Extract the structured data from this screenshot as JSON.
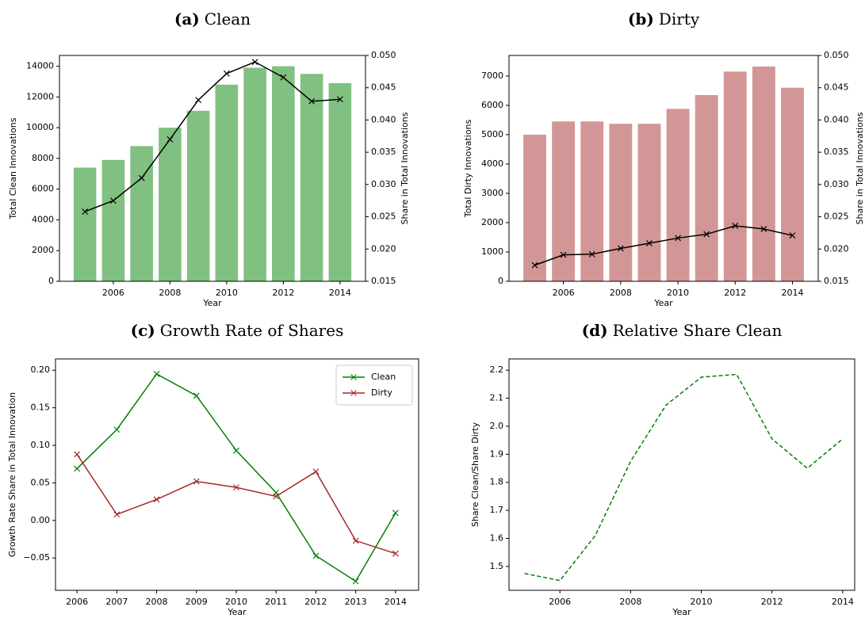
{
  "chart_data": [
    {
      "type": "bar",
      "panel": "(a)",
      "title": "Clean",
      "x": [
        2005,
        2006,
        2007,
        2008,
        2009,
        2010,
        2011,
        2012,
        2013,
        2014
      ],
      "xlim": [
        2004.1,
        2014.9
      ],
      "xticks": [
        2006,
        2008,
        2010,
        2012,
        2014
      ],
      "xlabel": "Year",
      "ylabel": "Total Clean Innovations",
      "ylabel_color": "#008000",
      "ylim": [
        0,
        14700
      ],
      "yticks": [
        0,
        2000,
        4000,
        6000,
        8000,
        10000,
        12000,
        14000
      ],
      "y2label": "Share in Total Innovations",
      "y2lim": [
        0.015,
        0.05
      ],
      "y2ticks": [
        {
          "value": 0.015,
          "label": "0.015"
        },
        {
          "value": 0.02,
          "label": "0.020"
        },
        {
          "value": 0.025,
          "label": "0.025"
        },
        {
          "value": 0.03,
          "label": "0.030"
        },
        {
          "value": 0.035,
          "label": "0.035"
        },
        {
          "value": 0.04,
          "label": "0.040"
        },
        {
          "value": 0.045,
          "label": "0.045"
        },
        {
          "value": 0.05,
          "label": "0.050"
        }
      ],
      "series": [
        {
          "type": "bar",
          "color": "#80c080",
          "values": [
            7400,
            7900,
            8800,
            10000,
            11100,
            12800,
            13900,
            14000,
            13500,
            12900
          ]
        },
        {
          "type": "line",
          "axis": "y2",
          "color": "#000000",
          "marker": "x",
          "values": [
            0.0258,
            0.0275,
            0.031,
            0.037,
            0.0431,
            0.0472,
            0.049,
            0.0466,
            0.0429,
            0.0432
          ]
        }
      ]
    },
    {
      "type": "bar",
      "panel": "(b)",
      "title": "Dirty",
      "x": [
        2005,
        2006,
        2007,
        2008,
        2009,
        2010,
        2011,
        2012,
        2013,
        2014
      ],
      "xlim": [
        2004.1,
        2014.9
      ],
      "xticks": [
        2006,
        2008,
        2010,
        2012,
        2014
      ],
      "xlabel": "Year",
      "ylabel": "Total Dirty Innovations",
      "ylabel_color": "#a52a2a",
      "ylim": [
        0,
        7700
      ],
      "yticks": [
        0,
        1000,
        2000,
        3000,
        4000,
        5000,
        6000,
        7000
      ],
      "y2label": "Share in Total Innovations",
      "y2lim": [
        0.015,
        0.05
      ],
      "y2ticks": [
        {
          "value": 0.015,
          "label": "0.015"
        },
        {
          "value": 0.02,
          "label": "0.020"
        },
        {
          "value": 0.025,
          "label": "0.025"
        },
        {
          "value": 0.03,
          "label": "0.030"
        },
        {
          "value": 0.035,
          "label": "0.035"
        },
        {
          "value": 0.04,
          "label": "0.040"
        },
        {
          "value": 0.045,
          "label": "0.045"
        },
        {
          "value": 0.05,
          "label": "0.050"
        }
      ],
      "series": [
        {
          "type": "bar",
          "color": "#d39696",
          "values": [
            5000,
            5450,
            5450,
            5370,
            5370,
            5880,
            6350,
            7150,
            7320,
            6600
          ]
        },
        {
          "type": "line",
          "axis": "y2",
          "color": "#000000",
          "marker": "x",
          "values": [
            0.0175,
            0.0191,
            0.0192,
            0.0201,
            0.0209,
            0.0217,
            0.0223,
            0.0236,
            0.0231,
            0.0221
          ]
        }
      ]
    },
    {
      "type": "line",
      "panel": "(c)",
      "title": "Growth Rate of Shares",
      "x": [
        2006,
        2007,
        2008,
        2009,
        2010,
        2011,
        2012,
        2013,
        2014
      ],
      "xlim": [
        2005.46,
        2014.58
      ],
      "xticks": [
        2006,
        2007,
        2008,
        2009,
        2010,
        2011,
        2012,
        2013,
        2014
      ],
      "xlabel": "Year",
      "ylabel": "Growth Rate Share in Total Innovation",
      "ylim": [
        -0.093,
        0.215
      ],
      "yticks": [
        {
          "value": -0.05,
          "label": "−0.05"
        },
        {
          "value": 0,
          "label": "0.00"
        },
        {
          "value": 0.05,
          "label": "0.05"
        },
        {
          "value": 0.1,
          "label": "0.10"
        },
        {
          "value": 0.15,
          "label": "0.15"
        },
        {
          "value": 0.2,
          "label": "0.20"
        }
      ],
      "legend": "upper right",
      "series": [
        {
          "name": "Clean",
          "type": "line",
          "color": "#008000",
          "marker": "x",
          "values": [
            0.069,
            0.121,
            0.195,
            0.166,
            0.093,
            0.037,
            -0.047,
            -0.081,
            0.01
          ]
        },
        {
          "name": "Dirty",
          "type": "line",
          "color": "#a52a2a",
          "marker": "x",
          "values": [
            0.088,
            0.008,
            0.028,
            0.052,
            0.044,
            0.032,
            0.065,
            -0.027,
            -0.044
          ]
        }
      ]
    },
    {
      "type": "line",
      "panel": "(d)",
      "title": "Relative Share Clean",
      "x": [
        2005,
        2006,
        2007,
        2008,
        2009,
        2010,
        2011,
        2012,
        2013,
        2014
      ],
      "xlim": [
        2004.56,
        2014.34
      ],
      "xticks": [
        2006,
        2008,
        2010,
        2012,
        2014
      ],
      "xlabel": "Year",
      "ylabel": "Share Clean/Share Dirty",
      "ylim": [
        1.415,
        2.24
      ],
      "yticks": [
        1.5,
        1.6,
        1.7,
        1.8,
        1.9,
        {
          "value": 2.0,
          "label": "2.0"
        },
        2.1,
        2.2
      ],
      "series": [
        {
          "type": "line",
          "color": "#008000",
          "dashed": true,
          "values": [
            1.475,
            1.45,
            1.61,
            1.875,
            2.075,
            2.175,
            2.185,
            1.955,
            1.85,
            1.955
          ]
        }
      ]
    }
  ]
}
